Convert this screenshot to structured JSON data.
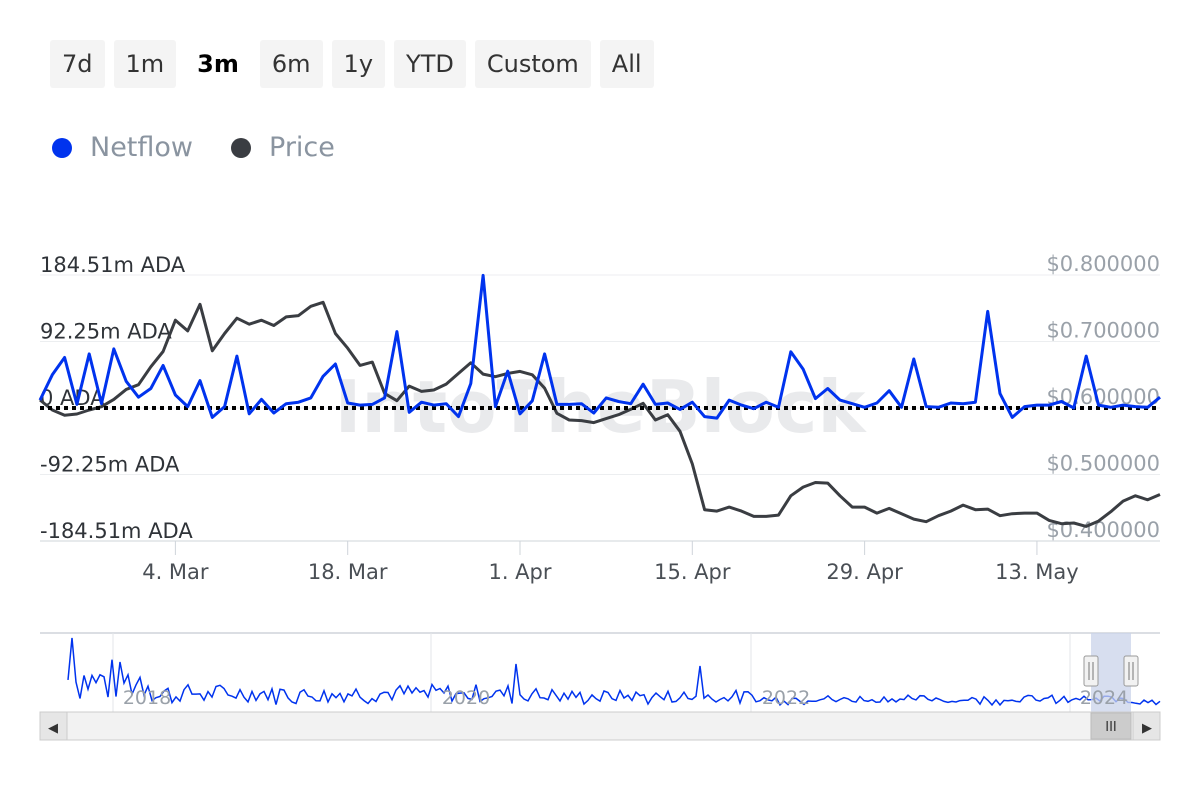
{
  "range_selector": {
    "buttons": [
      "7d",
      "1m",
      "3m",
      "6m",
      "1y",
      "YTD",
      "Custom",
      "All"
    ],
    "active": "3m"
  },
  "colors": {
    "netflow": "#0033ee",
    "price": "#3a3d42",
    "axis_text": "#2f3338",
    "axis_text_right": "#9aa1a9",
    "navigator_mask": "#c9d3ea"
  },
  "watermark": "IntoTheBlock",
  "chart_data": {
    "type": "line",
    "legend": {
      "position": "top-left"
    },
    "series": [
      {
        "name": "Netflow",
        "axis": "left",
        "color": "#0033ee"
      },
      {
        "name": "Price",
        "axis": "right",
        "color": "#3a3d42"
      }
    ],
    "y_left": {
      "ticks": [
        "184.51m ADA",
        "92.25m ADA",
        "0 ADA",
        "-92.25m ADA",
        "-184.51m ADA"
      ],
      "values": [
        184.51,
        92.25,
        0,
        -92.25,
        -184.51
      ],
      "range": [
        -184.51,
        184.51
      ],
      "unit": "m ADA"
    },
    "y_right": {
      "ticks": [
        "$0.800000",
        "$0.700000",
        "$0.600000",
        "$0.500000",
        "$0.400000"
      ],
      "values": [
        0.8,
        0.7,
        0.6,
        0.5,
        0.4
      ],
      "range": [
        0.4,
        0.8
      ]
    },
    "x_axis": {
      "ticks": [
        "4. Mar",
        "18. Mar",
        "1. Apr",
        "15. Apr",
        "29. Apr",
        "13. May"
      ],
      "tick_day_index": [
        11,
        25,
        39,
        53,
        67,
        81
      ],
      "range_days": [
        0,
        91
      ]
    },
    "zero_line": {
      "value": 0,
      "style": "dotted"
    },
    "netflow": [
      [
        0,
        11
      ],
      [
        1,
        46
      ],
      [
        2,
        70
      ],
      [
        3,
        5
      ],
      [
        4,
        75
      ],
      [
        5,
        6
      ],
      [
        6,
        82
      ],
      [
        7,
        37
      ],
      [
        8,
        15
      ],
      [
        9,
        27
      ],
      [
        10,
        59
      ],
      [
        11,
        18
      ],
      [
        12,
        2
      ],
      [
        13,
        38
      ],
      [
        14,
        -13
      ],
      [
        15,
        2
      ],
      [
        16,
        72
      ],
      [
        17,
        -8
      ],
      [
        18,
        12
      ],
      [
        19,
        -7
      ],
      [
        20,
        6
      ],
      [
        21,
        8
      ],
      [
        22,
        14
      ],
      [
        23,
        44
      ],
      [
        24,
        61
      ],
      [
        25,
        7
      ],
      [
        26,
        4
      ],
      [
        27,
        5
      ],
      [
        28,
        14
      ],
      [
        29,
        106
      ],
      [
        30,
        -6
      ],
      [
        31,
        8
      ],
      [
        32,
        4
      ],
      [
        33,
        6
      ],
      [
        34,
        -12
      ],
      [
        35,
        34
      ],
      [
        36,
        184
      ],
      [
        37,
        2
      ],
      [
        38,
        51
      ],
      [
        39,
        -8
      ],
      [
        40,
        10
      ],
      [
        41,
        75
      ],
      [
        42,
        5
      ],
      [
        43,
        5
      ],
      [
        44,
        6
      ],
      [
        45,
        -7
      ],
      [
        46,
        14
      ],
      [
        47,
        9
      ],
      [
        48,
        6
      ],
      [
        49,
        33
      ],
      [
        50,
        5
      ],
      [
        51,
        7
      ],
      [
        52,
        -2
      ],
      [
        53,
        8
      ],
      [
        54,
        -12
      ],
      [
        55,
        -14
      ],
      [
        56,
        11
      ],
      [
        57,
        4
      ],
      [
        58,
        -1
      ],
      [
        59,
        8
      ],
      [
        60,
        1
      ],
      [
        61,
        78
      ],
      [
        62,
        54
      ],
      [
        63,
        13
      ],
      [
        64,
        27
      ],
      [
        65,
        11
      ],
      [
        66,
        6
      ],
      [
        67,
        1
      ],
      [
        68,
        7
      ],
      [
        69,
        24
      ],
      [
        70,
        1
      ],
      [
        71,
        68
      ],
      [
        72,
        2
      ],
      [
        73,
        1
      ],
      [
        74,
        7
      ],
      [
        75,
        6
      ],
      [
        76,
        8
      ],
      [
        77,
        134
      ],
      [
        78,
        20
      ],
      [
        79,
        -13
      ],
      [
        80,
        2
      ],
      [
        81,
        4
      ],
      [
        82,
        4
      ],
      [
        83,
        9
      ],
      [
        84,
        0
      ],
      [
        85,
        72
      ],
      [
        86,
        4
      ],
      [
        87,
        1
      ],
      [
        88,
        4
      ],
      [
        89,
        2
      ],
      [
        90,
        1
      ],
      [
        91,
        15
      ]
    ],
    "price": [
      [
        0,
        0.612
      ],
      [
        1,
        0.597
      ],
      [
        2,
        0.589
      ],
      [
        3,
        0.591
      ],
      [
        4,
        0.597
      ],
      [
        5,
        0.602
      ],
      [
        6,
        0.613
      ],
      [
        7,
        0.628
      ],
      [
        8,
        0.635
      ],
      [
        9,
        0.662
      ],
      [
        10,
        0.685
      ],
      [
        11,
        0.732
      ],
      [
        12,
        0.716
      ],
      [
        13,
        0.756
      ],
      [
        14,
        0.686
      ],
      [
        15,
        0.712
      ],
      [
        16,
        0.735
      ],
      [
        17,
        0.726
      ],
      [
        18,
        0.732
      ],
      [
        19,
        0.724
      ],
      [
        20,
        0.737
      ],
      [
        21,
        0.739
      ],
      [
        22,
        0.753
      ],
      [
        23,
        0.759
      ],
      [
        24,
        0.712
      ],
      [
        25,
        0.69
      ],
      [
        26,
        0.664
      ],
      [
        27,
        0.669
      ],
      [
        28,
        0.622
      ],
      [
        29,
        0.611
      ],
      [
        30,
        0.633
      ],
      [
        31,
        0.625
      ],
      [
        32,
        0.627
      ],
      [
        33,
        0.636
      ],
      [
        34,
        0.652
      ],
      [
        35,
        0.668
      ],
      [
        36,
        0.651
      ],
      [
        37,
        0.647
      ],
      [
        38,
        0.652
      ],
      [
        39,
        0.655
      ],
      [
        40,
        0.65
      ],
      [
        41,
        0.63
      ],
      [
        42,
        0.592
      ],
      [
        43,
        0.582
      ],
      [
        44,
        0.581
      ],
      [
        45,
        0.578
      ],
      [
        46,
        0.584
      ],
      [
        47,
        0.59
      ],
      [
        48,
        0.598
      ],
      [
        49,
        0.607
      ],
      [
        50,
        0.582
      ],
      [
        51,
        0.59
      ],
      [
        52,
        0.565
      ],
      [
        53,
        0.516
      ],
      [
        54,
        0.447
      ],
      [
        55,
        0.445
      ],
      [
        56,
        0.451
      ],
      [
        57,
        0.445
      ],
      [
        58,
        0.437
      ],
      [
        59,
        0.437
      ],
      [
        60,
        0.439
      ],
      [
        61,
        0.468
      ],
      [
        62,
        0.481
      ],
      [
        63,
        0.488
      ],
      [
        64,
        0.487
      ],
      [
        65,
        0.468
      ],
      [
        66,
        0.451
      ],
      [
        67,
        0.451
      ],
      [
        68,
        0.442
      ],
      [
        69,
        0.449
      ],
      [
        70,
        0.441
      ],
      [
        71,
        0.433
      ],
      [
        72,
        0.429
      ],
      [
        73,
        0.438
      ],
      [
        74,
        0.445
      ],
      [
        75,
        0.454
      ],
      [
        76,
        0.447
      ],
      [
        77,
        0.448
      ],
      [
        78,
        0.438
      ],
      [
        79,
        0.441
      ],
      [
        80,
        0.442
      ],
      [
        81,
        0.442
      ],
      [
        82,
        0.431
      ],
      [
        83,
        0.426
      ],
      [
        84,
        0.427
      ],
      [
        85,
        0.422
      ],
      [
        86,
        0.43
      ],
      [
        87,
        0.444
      ],
      [
        88,
        0.46
      ],
      [
        89,
        0.468
      ],
      [
        90,
        0.462
      ],
      [
        91,
        0.47
      ]
    ]
  },
  "navigator": {
    "year_labels": [
      "2018",
      "2020",
      "2022",
      "2024"
    ],
    "scroll_left_glyph": "◀",
    "scroll_right_glyph": "▶",
    "handle_glyph": "III"
  }
}
